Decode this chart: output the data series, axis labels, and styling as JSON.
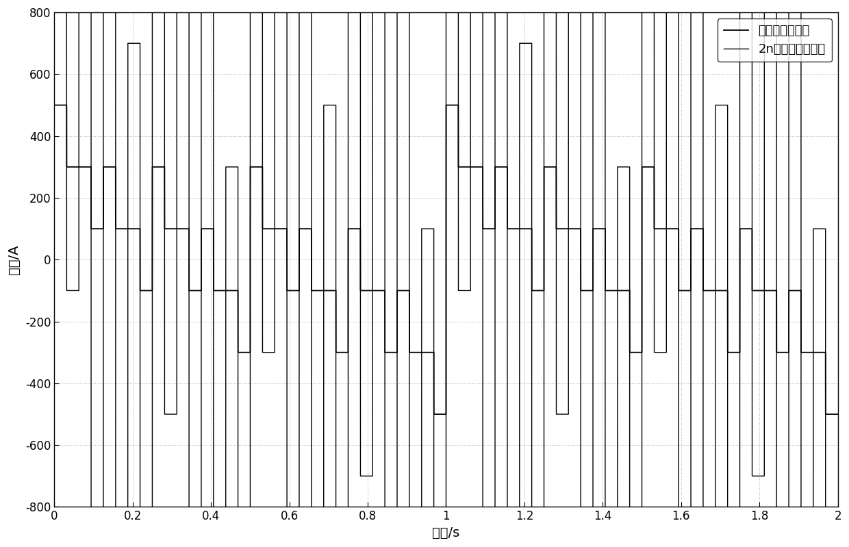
{
  "xlabel": "时间/s",
  "ylabel": "幅値/A",
  "xlim": [
    0,
    2
  ],
  "ylim": [
    -800,
    800
  ],
  "xticks": [
    0,
    0.2,
    0.4,
    0.6,
    0.8,
    1.0,
    1.2,
    1.4,
    1.6,
    1.8,
    2.0
  ],
  "yticks": [
    -800,
    -600,
    -400,
    -200,
    0,
    200,
    400,
    600,
    800
  ],
  "legend_labels": [
    "方波叠加后信号",
    "2n序列伪随机信号"
  ],
  "line_color": "#000000",
  "background_color": "#ffffff",
  "base_amplitude": 100,
  "period": 1.0,
  "total_time": 2.0,
  "n_harmonics": 5
}
